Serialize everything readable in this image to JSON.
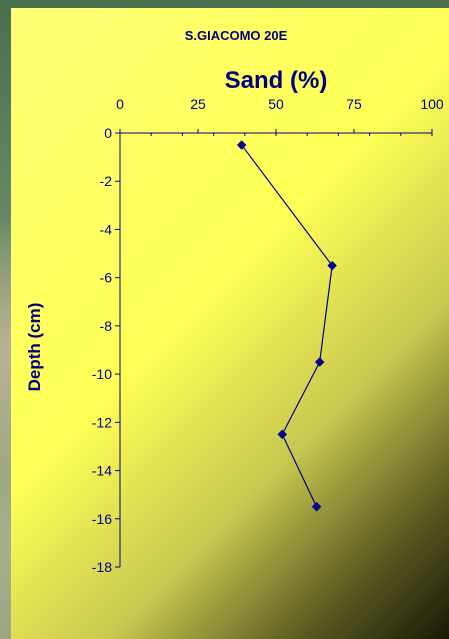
{
  "chart_data": {
    "type": "scatter",
    "title": "S.GIACOMO 20E",
    "xlabel": "Sand (%)",
    "ylabel": "Depth (cm)",
    "xlim": [
      0,
      100
    ],
    "ylim": [
      -18,
      0
    ],
    "x_ticks": [
      "0",
      "25",
      "50",
      "75",
      "100"
    ],
    "y_ticks": [
      "0",
      "-2",
      "-4",
      "-6",
      "-8",
      "-10",
      "-12",
      "-14",
      "-16",
      "-18"
    ],
    "x_axis_position": "top",
    "grid": false,
    "legend": "none",
    "line_color": "#00008b",
    "marker_color": "#00008b",
    "series": [
      {
        "x": [
          39,
          68,
          64,
          52,
          63
        ],
        "y": [
          -0.5,
          -5.5,
          -9.5,
          -12.5,
          -15.5
        ]
      }
    ]
  }
}
